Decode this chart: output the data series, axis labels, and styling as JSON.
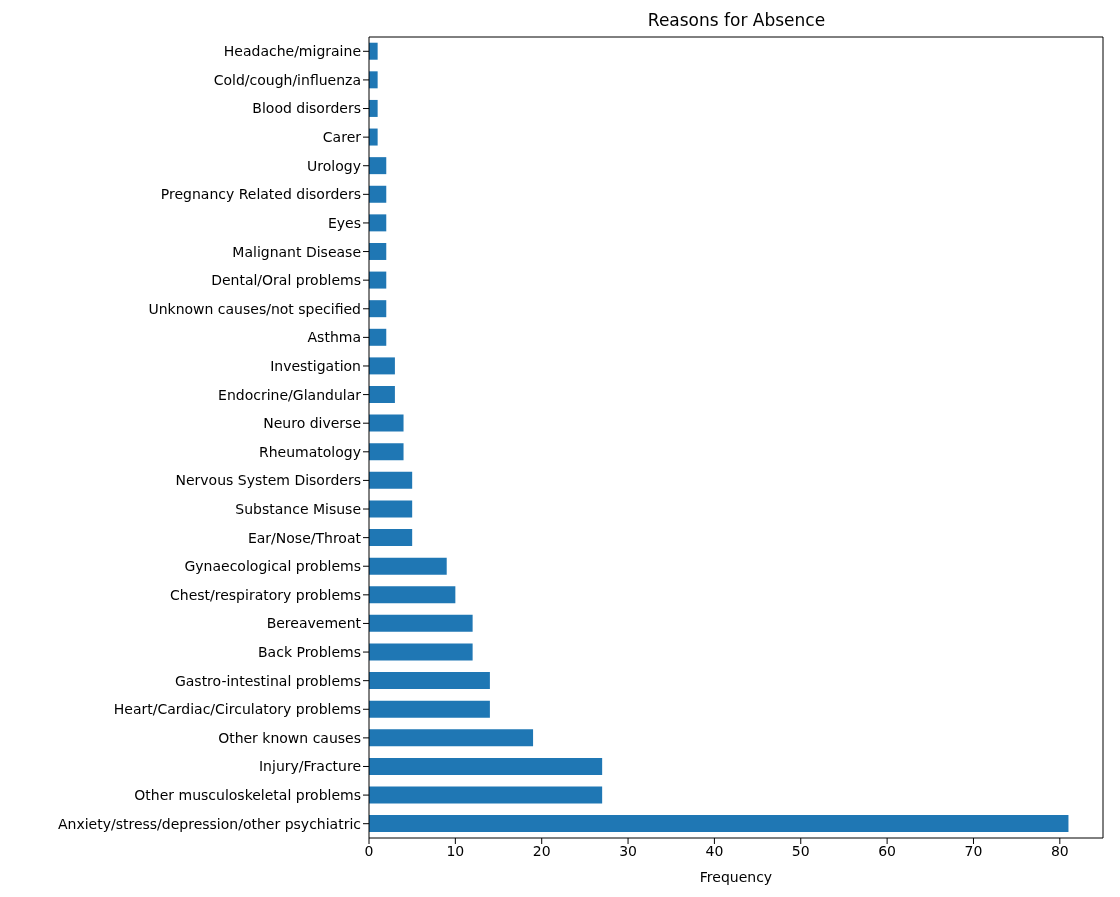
{
  "chart_data": {
    "type": "bar",
    "orientation": "horizontal",
    "title": "Reasons for Absence",
    "xlabel": "Frequency",
    "categories": [
      "Headache/migraine",
      "Cold/cough/influenza",
      "Blood disorders",
      "Carer",
      "Urology",
      "Pregnancy Related disorders",
      "Eyes",
      "Malignant Disease",
      "Dental/Oral problems",
      "Unknown causes/not specified",
      "Asthma",
      "Investigation",
      "Endocrine/Glandular",
      "Neuro diverse",
      "Rheumatology",
      "Nervous System Disorders",
      "Substance Misuse",
      "Ear/Nose/Throat",
      "Gynaecological problems",
      "Chest/respiratory problems",
      "Bereavement",
      "Back Problems",
      "Gastro-intestinal problems",
      "Heart/Cardiac/Circulatory problems",
      "Other known causes",
      "Injury/Fracture",
      "Other musculoskeletal problems",
      "Anxiety/stress/depression/other psychiatric"
    ],
    "values": [
      1,
      1,
      1,
      1,
      2,
      2,
      2,
      2,
      2,
      2,
      2,
      3,
      3,
      4,
      4,
      5,
      5,
      5,
      9,
      10,
      12,
      12,
      14,
      14,
      19,
      27,
      27,
      81
    ],
    "color": "#1f77b4",
    "xlim": [
      0,
      85
    ],
    "xticks": [
      0,
      10,
      20,
      30,
      40,
      50,
      60,
      70,
      80
    ],
    "grid": false,
    "legend": false
  }
}
